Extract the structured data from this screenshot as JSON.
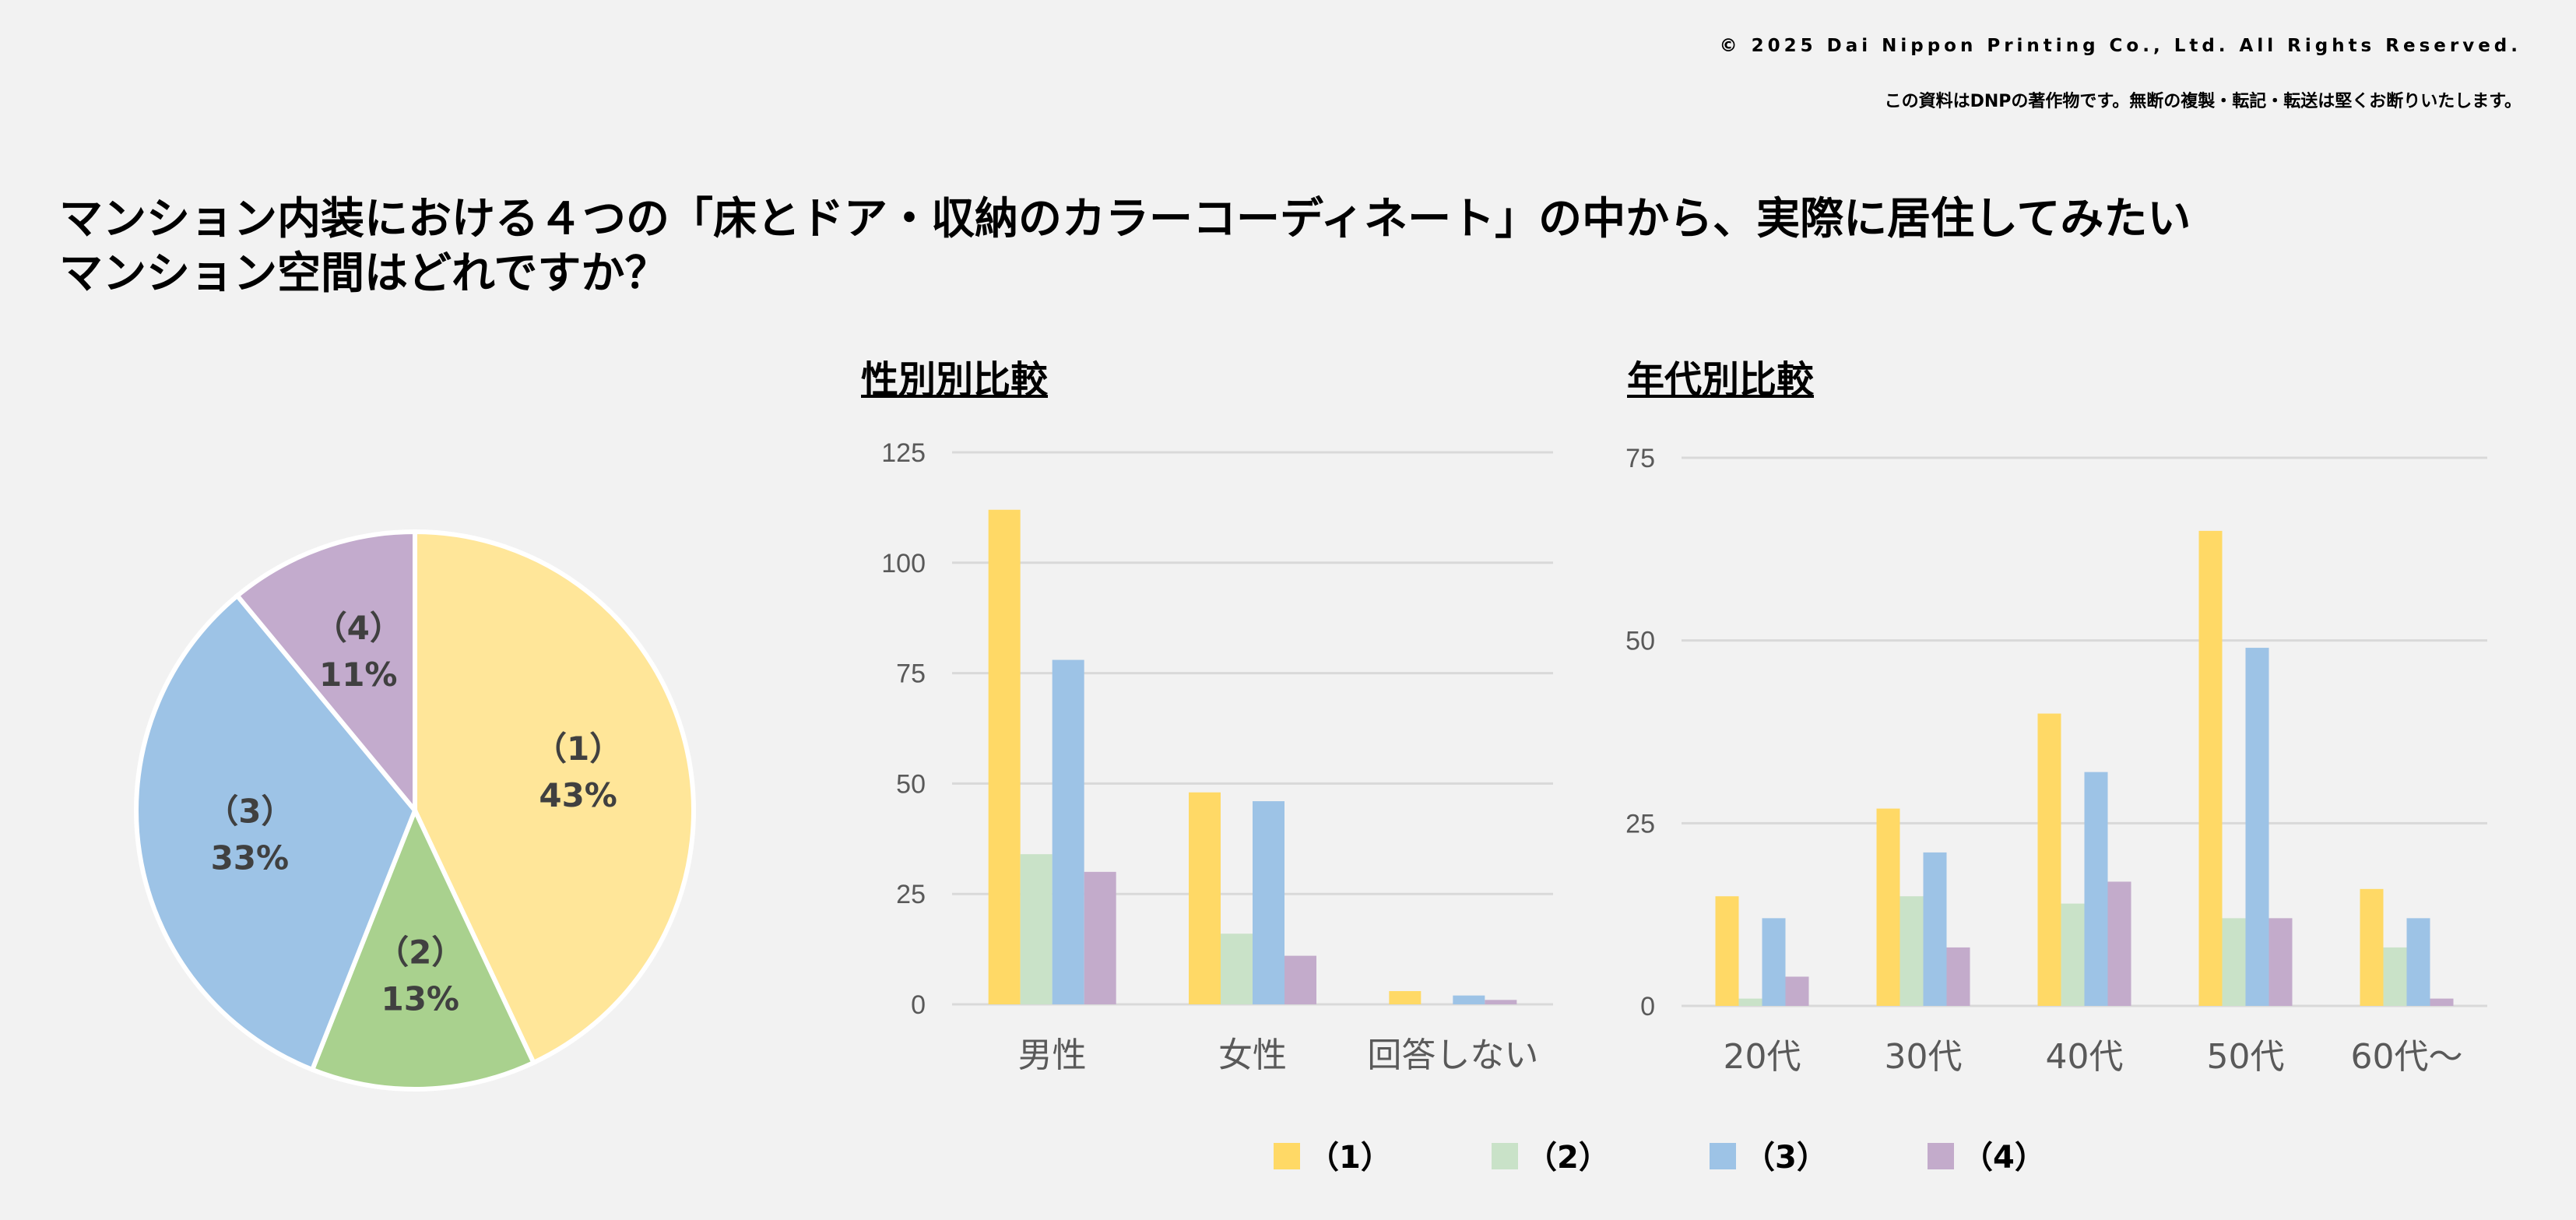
{
  "header": {
    "copyright": "© 2025 Dai Nippon Printing Co., Ltd. All Rights Reserved.",
    "notice": "この資料はDNPの著作物です。無断の複製・転記・転送は堅くお断りいたします。",
    "title_line1": "マンション内装における４つの「床とドア・収納のカラーコーディネート」の中から、実際に居住してみたい",
    "title_line2": "マンション空間はどれですか？"
  },
  "colors": {
    "pie": [
      "#FFE699",
      "#A9D18E",
      "#9DC3E6",
      "#C3ABCD"
    ],
    "bars": [
      "#FFD966",
      "#C9E2C8",
      "#9DC3E6",
      "#C3ABCB"
    ]
  },
  "chart_data": [
    {
      "type": "pie",
      "title": "",
      "categories": [
        "（1）",
        "（2）",
        "（3）",
        "（4）"
      ],
      "values": [
        43,
        13,
        33,
        11
      ],
      "labels": [
        "43%",
        "13%",
        "33%",
        "11%"
      ]
    },
    {
      "type": "bar",
      "title": "性別別比較",
      "categories": [
        "男性",
        "女性",
        "回答しない"
      ],
      "series": [
        {
          "name": "（1）",
          "values": [
            112,
            48,
            3
          ]
        },
        {
          "name": "（2）",
          "values": [
            34,
            16,
            0
          ]
        },
        {
          "name": "（3）",
          "values": [
            78,
            46,
            2
          ]
        },
        {
          "name": "（4）",
          "values": [
            30,
            11,
            1
          ]
        }
      ],
      "ylim": [
        0,
        125
      ],
      "yticks": [
        "0",
        "25",
        "50",
        "75",
        "100",
        "125"
      ],
      "grid": true
    },
    {
      "type": "bar",
      "title": "年代別比較",
      "categories": [
        "20代",
        "30代",
        "40代",
        "50代",
        "60代～"
      ],
      "series": [
        {
          "name": "（1）",
          "values": [
            15,
            27,
            40,
            65,
            16
          ]
        },
        {
          "name": "（2）",
          "values": [
            1,
            15,
            14,
            12,
            8
          ]
        },
        {
          "name": "（3）",
          "values": [
            12,
            21,
            32,
            49,
            12
          ]
        },
        {
          "name": "（4）",
          "values": [
            4,
            8,
            17,
            12,
            1
          ]
        }
      ],
      "ylim": [
        0,
        75
      ],
      "yticks": [
        "0",
        "25",
        "50",
        "75"
      ],
      "grid": true
    }
  ],
  "legend": [
    "（1）",
    "（2）",
    "（3）",
    "（4）"
  ]
}
